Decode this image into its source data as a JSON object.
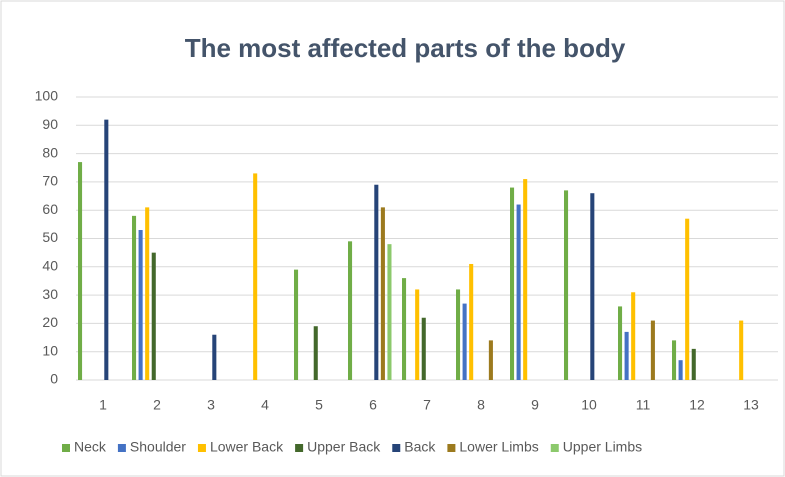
{
  "chart_data": {
    "type": "bar",
    "title": "The most affected parts of the body",
    "categories": [
      "1",
      "2",
      "3",
      "4",
      "5",
      "6",
      "7",
      "8",
      "9",
      "10",
      "11",
      "12",
      "13"
    ],
    "series": [
      {
        "name": "Neck",
        "color": "#70ad47",
        "values": [
          77,
          58,
          null,
          null,
          39,
          49,
          36,
          32,
          68,
          67,
          26,
          14,
          null
        ]
      },
      {
        "name": "Shoulder",
        "color": "#4472c4",
        "values": [
          null,
          53,
          null,
          null,
          null,
          null,
          null,
          27,
          62,
          null,
          17,
          7,
          null
        ]
      },
      {
        "name": "Lower Back",
        "color": "#ffc000",
        "values": [
          null,
          61,
          null,
          73,
          null,
          null,
          32,
          41,
          71,
          null,
          31,
          57,
          21
        ]
      },
      {
        "name": "Upper Back",
        "color": "#43682b",
        "values": [
          null,
          45,
          null,
          null,
          19,
          null,
          22,
          null,
          null,
          null,
          null,
          11,
          null
        ]
      },
      {
        "name": "Back",
        "color": "#264478",
        "values": [
          92,
          null,
          16,
          null,
          null,
          69,
          null,
          null,
          null,
          66,
          null,
          null,
          null
        ]
      },
      {
        "name": "Lower Limbs",
        "color": "#9c7a1e",
        "values": [
          null,
          null,
          null,
          null,
          null,
          61,
          null,
          14,
          null,
          null,
          21,
          null,
          null
        ]
      },
      {
        "name": "Upper Limbs",
        "color": "#8cc96c",
        "values": [
          null,
          null,
          null,
          null,
          null,
          48,
          null,
          null,
          null,
          null,
          null,
          null,
          null
        ]
      }
    ],
    "ylim": [
      0,
      100
    ],
    "yticks": [
      0,
      10,
      20,
      30,
      40,
      50,
      60,
      70,
      80,
      90,
      100
    ],
    "grid": true,
    "legend": "bottom"
  }
}
